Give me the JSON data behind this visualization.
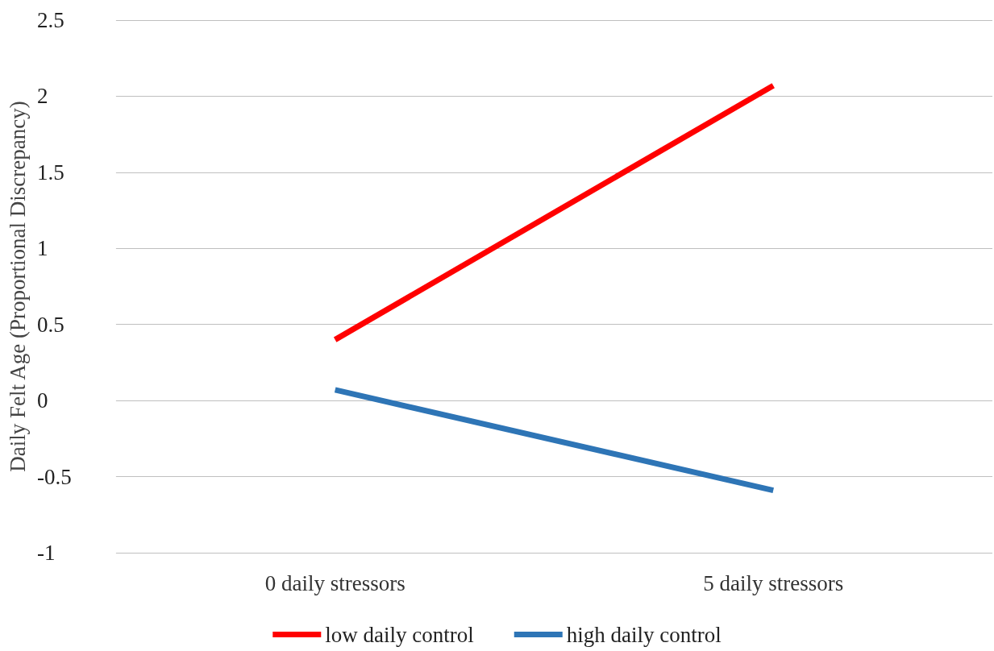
{
  "chart_data": {
    "type": "line",
    "ylabel": "Daily Felt Age (Proportional Discrepancy)",
    "categories": [
      "0 daily stressors",
      "5 daily stressors"
    ],
    "series": [
      {
        "name": "low daily control",
        "color": "#ff0000",
        "values": [
          0.4,
          2.07
        ]
      },
      {
        "name": "high daily control",
        "color": "#2e75b6",
        "values": [
          0.07,
          -0.59
        ]
      }
    ],
    "ylim": [
      -1,
      2.5
    ],
    "yticks": [
      -1,
      -0.5,
      0,
      0.5,
      1,
      1.5,
      2,
      2.5
    ],
    "grid": "y",
    "legend": "bottom",
    "marker": "none",
    "line_style": "solid"
  }
}
